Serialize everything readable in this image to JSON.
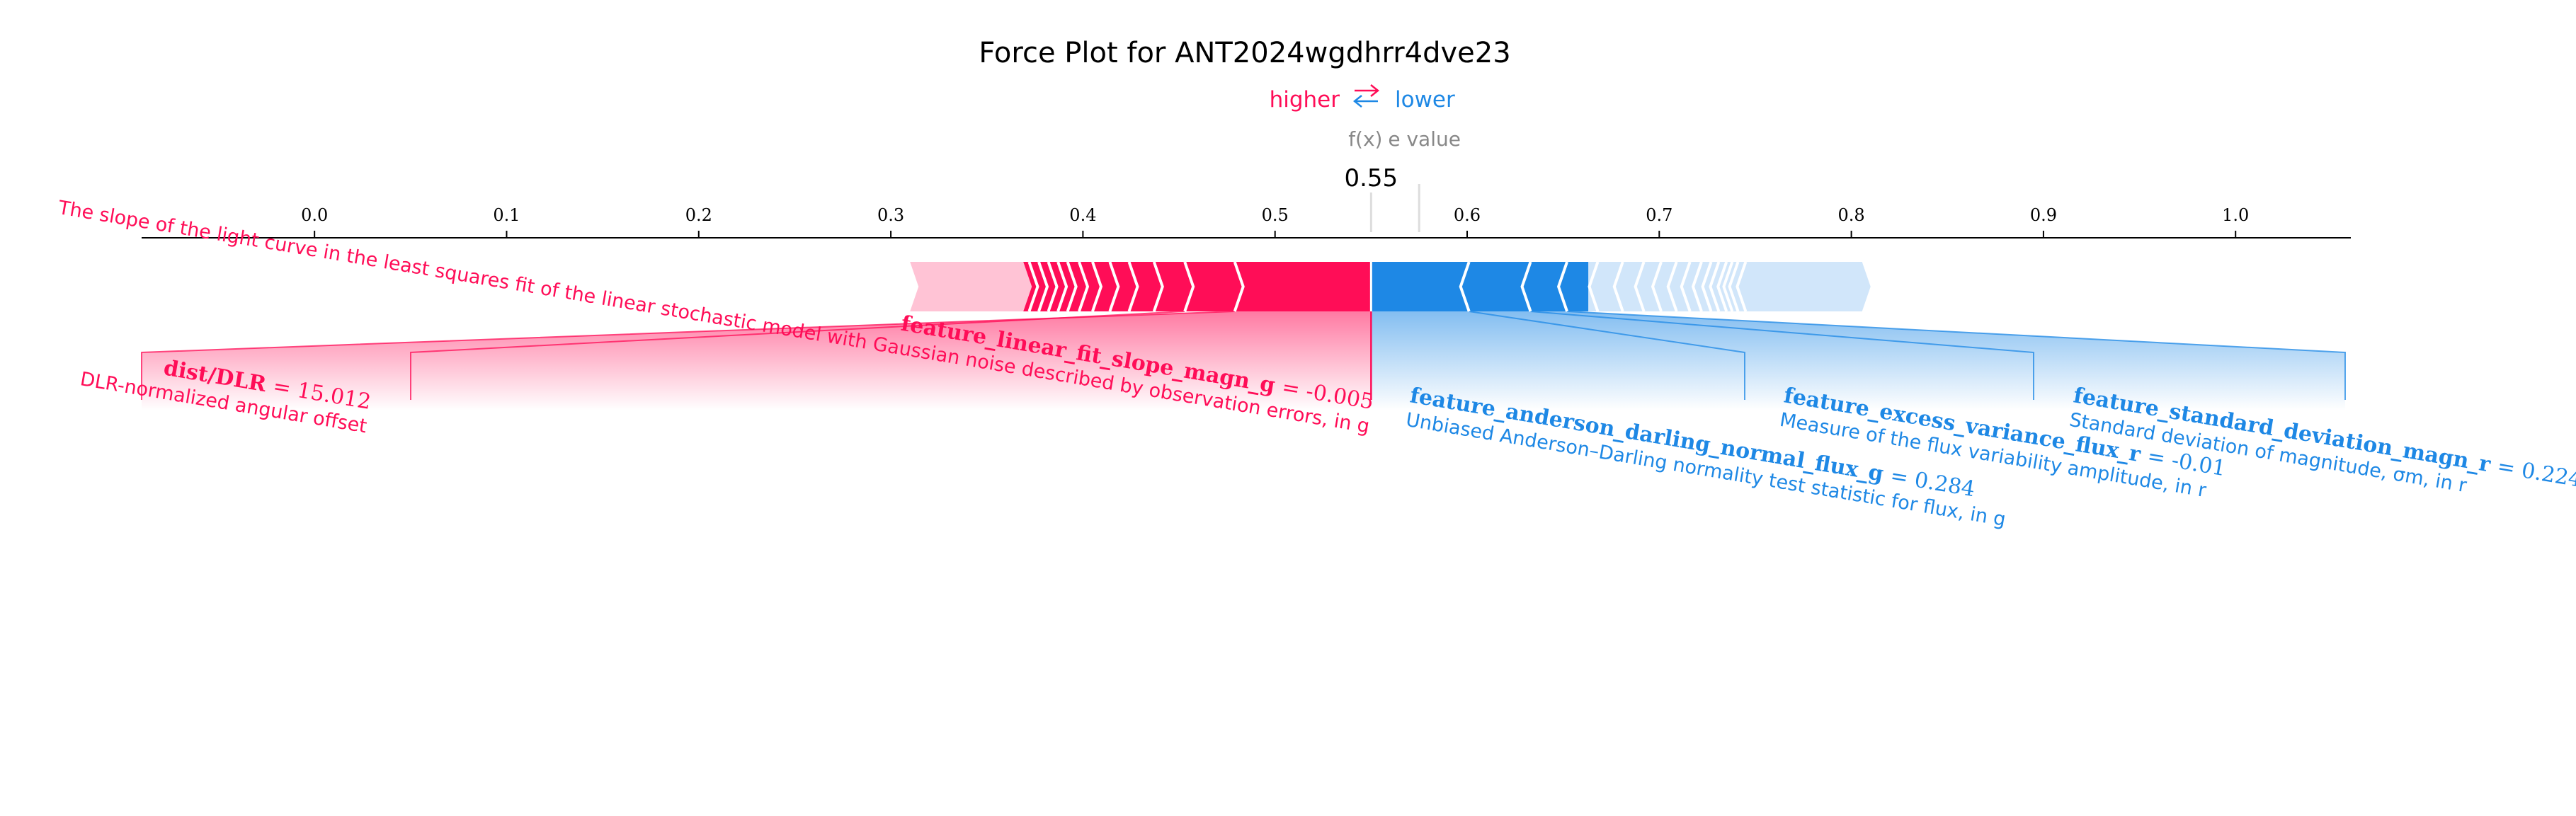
{
  "chart_data": {
    "type": "force",
    "title": "Force Plot for ANT2024wgdhrr4dve23",
    "legend": {
      "higher": "higher",
      "lower": "lower"
    },
    "output_label": "f(x)",
    "base_label": "e value",
    "output_value": 0.55,
    "output_value_label": "0.55",
    "base_value": 0.575,
    "xlim": [
      -0.09,
      1.06
    ],
    "ticks": [
      0.0,
      0.1,
      0.2,
      0.3,
      0.4,
      0.5,
      0.6,
      0.7,
      0.8,
      0.9,
      1.0
    ],
    "tick_labels": [
      "0.0",
      "0.1",
      "0.2",
      "0.3",
      "0.4",
      "0.5",
      "0.6",
      "0.7",
      "0.8",
      "0.9",
      "1.0"
    ],
    "positive_range": [
      0.31,
      0.55
    ],
    "negative_range": [
      0.55,
      0.81
    ],
    "positive_segment_breaks": [
      0.31,
      0.372,
      0.377,
      0.382,
      0.387,
      0.392,
      0.398,
      0.405,
      0.414,
      0.424,
      0.437,
      0.453,
      0.479,
      0.55
    ],
    "negative_segment_breaks": [
      0.55,
      0.601,
      0.633,
      0.652,
      0.668,
      0.681,
      0.692,
      0.701,
      0.709,
      0.716,
      0.722,
      0.727,
      0.731,
      0.735,
      0.738,
      0.741,
      0.745,
      0.81
    ],
    "colors": {
      "positive": "#ff0d57",
      "negative": "#1e88e5",
      "positive_light": "#ffc3d5",
      "negative_light": "#d1e6fa",
      "axis": "#000000",
      "muted": "#888888"
    },
    "features": [
      {
        "sign": "positive",
        "name": "dist/DLR",
        "value_text": "= 15.012",
        "description": "DLR-normalized angular offset",
        "bar_range": [
          0.479,
          0.55
        ]
      },
      {
        "sign": "positive",
        "name": "feature_linear_fit_slope_magn_g",
        "value_text": "= -0.005",
        "description": "The slope of the light curve in the least squares fit of the linear stochastic model with Gaussian noise described by observation errors, in g",
        "bar_range": [
          0.453,
          0.479
        ]
      },
      {
        "sign": "negative",
        "name": "feature_anderson_darling_normal_flux_g",
        "value_text": "= 0.284",
        "description": "Unbiased Anderson–Darling normality test statistic for flux, in g",
        "bar_range": [
          0.55,
          0.601
        ]
      },
      {
        "sign": "negative",
        "name": "feature_excess_variance_flux_r",
        "value_text": "= -0.01",
        "description": "Measure of the flux variability amplitude, in r",
        "bar_range": [
          0.601,
          0.633
        ]
      },
      {
        "sign": "negative",
        "name": "feature_standard_deviation_magn_r",
        "value_text": "= 0.224",
        "description": "Standard deviation of magnitude, σm, in r",
        "bar_range": [
          0.633,
          0.652
        ]
      }
    ]
  }
}
